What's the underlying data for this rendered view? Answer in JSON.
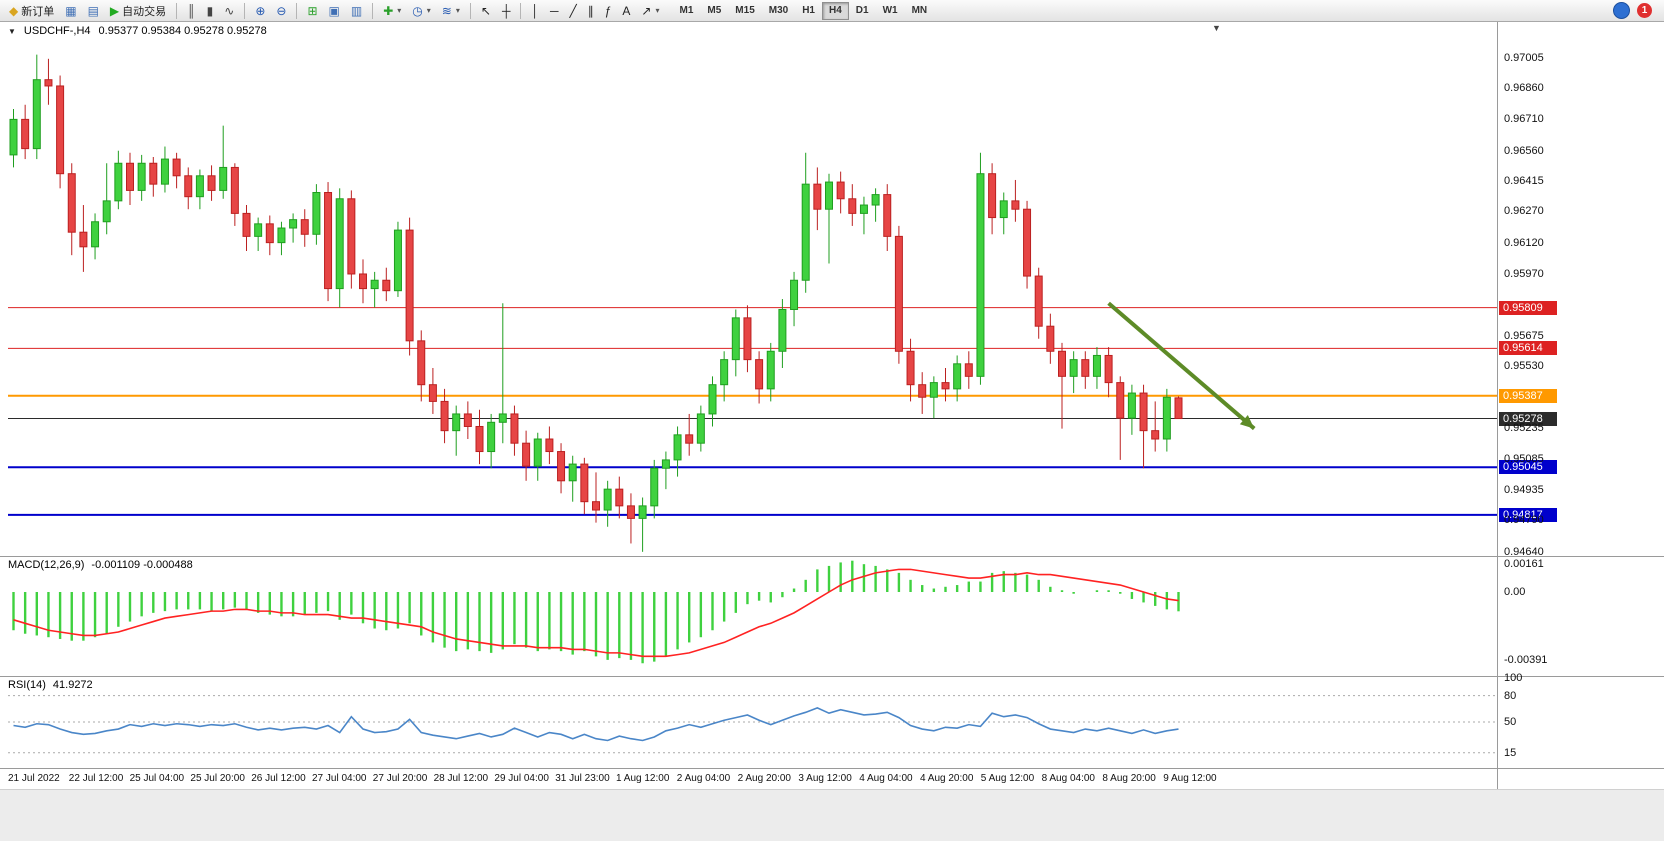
{
  "toolbar": {
    "items": [
      {
        "name": "new-order",
        "label": "新订单",
        "icon": "new-order-icon",
        "glyph": "◆",
        "color": "#d9a520"
      },
      {
        "name": "chart-windows",
        "icon": "chart-windows-icon",
        "glyph": "▦",
        "color": "#3f6fb5"
      },
      {
        "name": "profiles",
        "icon": "profiles-icon",
        "glyph": "▤",
        "color": "#3f6fb5"
      },
      {
        "name": "auto-trading",
        "label": "自动交易",
        "icon": "autotrade-play-icon",
        "glyph": "▶",
        "color": "#22aa22"
      },
      {
        "type": "sep"
      },
      {
        "name": "bar-chart-mode",
        "icon": "bar-chart-icon",
        "glyph": "║",
        "color": "#444444"
      },
      {
        "name": "candlestick-mode",
        "icon": "candlestick-chart-icon",
        "glyph": "▮",
        "color": "#444444"
      },
      {
        "name": "line-chart-mode",
        "icon": "line-chart-icon",
        "glyph": "∿",
        "color": "#444444"
      },
      {
        "type": "sep"
      },
      {
        "name": "zoom-in",
        "icon": "zoom-in-icon",
        "glyph": "⊕",
        "color": "#2458b0"
      },
      {
        "name": "zoom-out",
        "icon": "zoom-out-icon",
        "glyph": "⊖",
        "color": "#2458b0"
      },
      {
        "type": "sep"
      },
      {
        "name": "tile-windows",
        "icon": "tile-windows-icon",
        "glyph": "⊞",
        "color": "#2aa02a"
      },
      {
        "name": "cascade-windows",
        "icon": "cascade-windows-icon",
        "glyph": "▣",
        "color": "#3f6fb5"
      },
      {
        "name": "arrange-windows",
        "icon": "arrange-windows-icon",
        "glyph": "▥",
        "color": "#3f6fb5"
      },
      {
        "type": "sep"
      },
      {
        "name": "new-chart",
        "icon": "new-chart-icon",
        "glyph": "✚",
        "color": "#2aa02a",
        "dropdown": true
      },
      {
        "name": "periods",
        "icon": "clock-icon",
        "glyph": "◷",
        "color": "#2458b0",
        "dropdown": true
      },
      {
        "name": "indicators",
        "icon": "indicators-icon",
        "glyph": "≋",
        "color": "#2458b0",
        "dropdown": true
      },
      {
        "type": "sep"
      },
      {
        "name": "cursor",
        "icon": "cursor-icon",
        "glyph": "↖",
        "color": "#222222"
      },
      {
        "name": "crosshair",
        "icon": "crosshair-icon",
        "glyph": "┼",
        "color": "#222222"
      },
      {
        "type": "sep"
      },
      {
        "name": "vertical-line",
        "icon": "vertical-line-icon",
        "glyph": "│",
        "color": "#222222"
      },
      {
        "name": "horizontal-line",
        "icon": "horizontal-line-icon",
        "glyph": "─",
        "color": "#222222"
      },
      {
        "name": "trendline",
        "icon": "trendline-icon",
        "glyph": "╱",
        "color": "#222222"
      },
      {
        "name": "channel",
        "icon": "channel-icon",
        "glyph": "∥",
        "color": "#222222"
      },
      {
        "name": "fibonacci",
        "icon": "fibonacci-icon",
        "glyph": "ƒ",
        "color": "#222222"
      },
      {
        "name": "text-label",
        "icon": "text-icon",
        "glyph": "A",
        "color": "#222222"
      },
      {
        "name": "arrows-tool",
        "icon": "arrows-icon",
        "glyph": "↗",
        "color": "#222222",
        "dropdown": true
      }
    ],
    "timeframes": [
      "M1",
      "M5",
      "M15",
      "M30",
      "H1",
      "H4",
      "D1",
      "W1",
      "MN"
    ],
    "active_timeframe": "H4",
    "notification_count": "1"
  },
  "chart_data": {
    "type": "candlestick",
    "symbol": "USDCHF-",
    "timeframe": "H4",
    "symbol_period_text": "USDCHF-,H4",
    "ohlc_text": "0.95377 0.95384 0.95278 0.95278",
    "price_axis": {
      "max_price": 0.9709,
      "min_price": 0.9462,
      "labels": [
        "0.97005",
        "0.96860",
        "0.96710",
        "0.96560",
        "0.96415",
        "0.96270",
        "0.96120",
        "0.95970",
        "0.95675",
        "0.95530",
        "0.95235",
        "0.95085",
        "0.94935",
        "0.94790",
        "0.94640"
      ]
    },
    "time_axis": [
      "21 Jul 2022",
      "22 Jul 12:00",
      "25 Jul 04:00",
      "25 Jul 20:00",
      "26 Jul 12:00",
      "27 Jul 04:00",
      "27 Jul 20:00",
      "28 Jul 12:00",
      "29 Jul 04:00",
      "31 Jul 23:00",
      "1 Aug 12:00",
      "2 Aug 04:00",
      "2 Aug 20:00",
      "3 Aug 12:00",
      "4 Aug 04:00",
      "4 Aug 20:00",
      "5 Aug 12:00",
      "8 Aug 04:00",
      "8 Aug 20:00",
      "9 Aug 12:00"
    ],
    "candles": [
      [
        0.9654,
        0.9676,
        0.9648,
        0.9671
      ],
      [
        0.9671,
        0.9678,
        0.9652,
        0.9657
      ],
      [
        0.9657,
        0.9702,
        0.9652,
        0.969
      ],
      [
        0.969,
        0.97,
        0.9678,
        0.9687
      ],
      [
        0.9687,
        0.9692,
        0.9638,
        0.9645
      ],
      [
        0.9645,
        0.965,
        0.9606,
        0.9617
      ],
      [
        0.9617,
        0.963,
        0.9598,
        0.961
      ],
      [
        0.961,
        0.9626,
        0.9604,
        0.9622
      ],
      [
        0.9622,
        0.965,
        0.9616,
        0.9632
      ],
      [
        0.9632,
        0.9656,
        0.9628,
        0.965
      ],
      [
        0.965,
        0.9655,
        0.963,
        0.9637
      ],
      [
        0.9637,
        0.9654,
        0.9632,
        0.965
      ],
      [
        0.965,
        0.9653,
        0.9634,
        0.964
      ],
      [
        0.964,
        0.9658,
        0.9636,
        0.9652
      ],
      [
        0.9652,
        0.9655,
        0.9638,
        0.9644
      ],
      [
        0.9644,
        0.9648,
        0.9628,
        0.9634
      ],
      [
        0.9634,
        0.9647,
        0.9628,
        0.9644
      ],
      [
        0.9644,
        0.9649,
        0.9632,
        0.9637
      ],
      [
        0.9637,
        0.9668,
        0.9633,
        0.9648
      ],
      [
        0.9648,
        0.965,
        0.962,
        0.9626
      ],
      [
        0.9626,
        0.963,
        0.9608,
        0.9615
      ],
      [
        0.9615,
        0.9624,
        0.9608,
        0.9621
      ],
      [
        0.9621,
        0.9625,
        0.9606,
        0.9612
      ],
      [
        0.9612,
        0.9622,
        0.9606,
        0.9619
      ],
      [
        0.9619,
        0.9626,
        0.9612,
        0.9623
      ],
      [
        0.9623,
        0.9628,
        0.961,
        0.9616
      ],
      [
        0.9616,
        0.964,
        0.9611,
        0.9636
      ],
      [
        0.9636,
        0.9641,
        0.9584,
        0.959
      ],
      [
        0.959,
        0.9638,
        0.9581,
        0.9633
      ],
      [
        0.9633,
        0.9637,
        0.959,
        0.9597
      ],
      [
        0.9597,
        0.9604,
        0.9583,
        0.959
      ],
      [
        0.959,
        0.9598,
        0.9581,
        0.9594
      ],
      [
        0.9594,
        0.96,
        0.9584,
        0.9589
      ],
      [
        0.9589,
        0.9622,
        0.9586,
        0.9618
      ],
      [
        0.9618,
        0.9624,
        0.9558,
        0.9565
      ],
      [
        0.9565,
        0.957,
        0.9536,
        0.9544
      ],
      [
        0.9544,
        0.9552,
        0.953,
        0.9536
      ],
      [
        0.9536,
        0.9542,
        0.9516,
        0.9522
      ],
      [
        0.9522,
        0.9534,
        0.951,
        0.953
      ],
      [
        0.953,
        0.9536,
        0.9518,
        0.9524
      ],
      [
        0.9524,
        0.9532,
        0.9506,
        0.9512
      ],
      [
        0.9512,
        0.953,
        0.9504,
        0.9526
      ],
      [
        0.9526,
        0.9583,
        0.9516,
        0.953
      ],
      [
        0.953,
        0.9534,
        0.951,
        0.9516
      ],
      [
        0.9516,
        0.9522,
        0.9498,
        0.9505
      ],
      [
        0.9505,
        0.9521,
        0.9498,
        0.9518
      ],
      [
        0.9518,
        0.9524,
        0.9506,
        0.9512
      ],
      [
        0.9512,
        0.9516,
        0.9492,
        0.9498
      ],
      [
        0.9498,
        0.951,
        0.9488,
        0.9506
      ],
      [
        0.9506,
        0.9509,
        0.9482,
        0.9488
      ],
      [
        0.9488,
        0.9502,
        0.9478,
        0.9484
      ],
      [
        0.9484,
        0.9498,
        0.9476,
        0.9494
      ],
      [
        0.9494,
        0.95,
        0.948,
        0.9486
      ],
      [
        0.9486,
        0.9492,
        0.9468,
        0.948
      ],
      [
        0.948,
        0.949,
        0.9464,
        0.9486
      ],
      [
        0.9486,
        0.9508,
        0.948,
        0.9504
      ],
      [
        0.9504,
        0.9512,
        0.9494,
        0.9508
      ],
      [
        0.9508,
        0.9524,
        0.95,
        0.952
      ],
      [
        0.952,
        0.953,
        0.951,
        0.9516
      ],
      [
        0.9516,
        0.9534,
        0.9512,
        0.953
      ],
      [
        0.953,
        0.9548,
        0.9524,
        0.9544
      ],
      [
        0.9544,
        0.956,
        0.9536,
        0.9556
      ],
      [
        0.9556,
        0.958,
        0.9548,
        0.9576
      ],
      [
        0.9576,
        0.9582,
        0.955,
        0.9556
      ],
      [
        0.9556,
        0.956,
        0.9535,
        0.9542
      ],
      [
        0.9542,
        0.9564,
        0.9536,
        0.956
      ],
      [
        0.956,
        0.9585,
        0.9552,
        0.958
      ],
      [
        0.958,
        0.9598,
        0.9572,
        0.9594
      ],
      [
        0.9594,
        0.9655,
        0.9588,
        0.964
      ],
      [
        0.964,
        0.9648,
        0.9618,
        0.9628
      ],
      [
        0.9628,
        0.9645,
        0.9602,
        0.9641
      ],
      [
        0.9641,
        0.9646,
        0.9626,
        0.9633
      ],
      [
        0.9633,
        0.964,
        0.962,
        0.9626
      ],
      [
        0.9626,
        0.9634,
        0.9616,
        0.963
      ],
      [
        0.963,
        0.9638,
        0.9622,
        0.9635
      ],
      [
        0.9635,
        0.964,
        0.9608,
        0.9615
      ],
      [
        0.9615,
        0.962,
        0.9554,
        0.956
      ],
      [
        0.956,
        0.9566,
        0.9536,
        0.9544
      ],
      [
        0.9544,
        0.955,
        0.953,
        0.9538
      ],
      [
        0.9538,
        0.9548,
        0.9528,
        0.9545
      ],
      [
        0.9545,
        0.9552,
        0.9536,
        0.9542
      ],
      [
        0.9542,
        0.9558,
        0.9536,
        0.9554
      ],
      [
        0.9554,
        0.956,
        0.9542,
        0.9548
      ],
      [
        0.9548,
        0.9655,
        0.9544,
        0.9645
      ],
      [
        0.9645,
        0.965,
        0.9616,
        0.9624
      ],
      [
        0.9624,
        0.9636,
        0.9616,
        0.9632
      ],
      [
        0.9632,
        0.9642,
        0.9622,
        0.9628
      ],
      [
        0.9628,
        0.9632,
        0.959,
        0.9596
      ],
      [
        0.9596,
        0.96,
        0.9566,
        0.9572
      ],
      [
        0.9572,
        0.9578,
        0.9554,
        0.956
      ],
      [
        0.956,
        0.9564,
        0.9523,
        0.9548
      ],
      [
        0.9548,
        0.956,
        0.954,
        0.9556
      ],
      [
        0.9556,
        0.956,
        0.9542,
        0.9548
      ],
      [
        0.9548,
        0.9562,
        0.9542,
        0.9558
      ],
      [
        0.9558,
        0.9562,
        0.9538,
        0.9545
      ],
      [
        0.9545,
        0.9548,
        0.9508,
        0.9528
      ],
      [
        0.9528,
        0.9544,
        0.952,
        0.954
      ],
      [
        0.954,
        0.9544,
        0.9504,
        0.9522
      ],
      [
        0.9522,
        0.9536,
        0.9512,
        0.9518
      ],
      [
        0.9518,
        0.9542,
        0.9512,
        0.9538
      ],
      [
        0.95377,
        0.95384,
        0.95278,
        0.95278
      ]
    ],
    "hlines": [
      {
        "price": 0.95809,
        "label": "0.95809",
        "color": "#dd2222",
        "width": 1
      },
      {
        "price": 0.95614,
        "label": "0.95614",
        "color": "#dd2222",
        "width": 1
      },
      {
        "price": 0.95387,
        "label": "0.95387",
        "color": "#ff9900",
        "width": 2
      },
      {
        "price": 0.95278,
        "label": "0.95278",
        "color": "#2b2b2b",
        "width": 1
      },
      {
        "price": 0.95045,
        "label": "0.95045",
        "color": "#0000cc",
        "width": 2
      },
      {
        "price": 0.94817,
        "label": "0.94817",
        "color": "#0000cc",
        "width": 2
      }
    ],
    "trend_arrow": {
      "from_bar": 94,
      "from_price": 0.9583,
      "to_bar": 106.5,
      "to_price": 0.9523,
      "color": "#5d8b27"
    },
    "indicators": {
      "macd": {
        "label": "MACD(12,26,9)",
        "values_text": "-0.001109 -0.000488",
        "axis_labels": [
          "0.00161",
          "0.00",
          "-0.00391"
        ],
        "axis_values": [
          0.00161,
          0,
          -0.00391
        ],
        "hist_color": "#3fd13f",
        "signal_color": "#ff2222",
        "histogram": [
          -0.0022,
          -0.0024,
          -0.0025,
          -0.0026,
          -0.0027,
          -0.0028,
          -0.0028,
          -0.0026,
          -0.0024,
          -0.002,
          -0.0017,
          -0.0014,
          -0.0012,
          -0.0011,
          -0.001,
          -0.001,
          -0.001,
          -0.0011,
          -0.001,
          -0.0009,
          -0.001,
          -0.0012,
          -0.0013,
          -0.0014,
          -0.0014,
          -0.0013,
          -0.0012,
          -0.0011,
          -0.0016,
          -0.0013,
          -0.0018,
          -0.0021,
          -0.0022,
          -0.0021,
          -0.0018,
          -0.0025,
          -0.0029,
          -0.0032,
          -0.0034,
          -0.0033,
          -0.0034,
          -0.0035,
          -0.0033,
          -0.003,
          -0.0032,
          -0.0034,
          -0.0033,
          -0.0034,
          -0.0036,
          -0.0034,
          -0.0037,
          -0.0039,
          -0.0038,
          -0.0039,
          -0.0041,
          -0.004,
          -0.0037,
          -0.0033,
          -0.0029,
          -0.0026,
          -0.0022,
          -0.0017,
          -0.0012,
          -0.0007,
          -0.0005,
          -0.0006,
          -0.0003,
          0.0002,
          0.0007,
          0.0013,
          0.0015,
          0.0017,
          0.0018,
          0.0016,
          0.0015,
          0.0013,
          0.0011,
          0.0007,
          0.0004,
          0.0002,
          0.0003,
          0.0004,
          0.0006,
          0.0006,
          0.0011,
          0.0012,
          0.0011,
          0.001,
          0.0007,
          0.0003,
          0.0001,
          -0.0001,
          0.0,
          0.0001,
          0.0001,
          -0.0001,
          -0.0004,
          -0.0006,
          -0.0008,
          -0.001,
          -0.00111
        ],
        "signal": [
          -0.0016,
          -0.0018,
          -0.002,
          -0.0022,
          -0.0023,
          -0.0024,
          -0.0025,
          -0.0025,
          -0.0024,
          -0.0023,
          -0.0021,
          -0.0019,
          -0.0017,
          -0.0015,
          -0.0014,
          -0.0013,
          -0.0012,
          -0.0011,
          -0.0011,
          -0.001,
          -0.001,
          -0.0011,
          -0.0011,
          -0.0012,
          -0.0012,
          -0.0013,
          -0.0013,
          -0.0013,
          -0.0014,
          -0.0015,
          -0.0015,
          -0.0016,
          -0.0017,
          -0.0018,
          -0.0019,
          -0.002,
          -0.0023,
          -0.0025,
          -0.0027,
          -0.0028,
          -0.0029,
          -0.003,
          -0.0031,
          -0.0031,
          -0.0031,
          -0.0032,
          -0.0032,
          -0.0032,
          -0.0033,
          -0.0033,
          -0.0034,
          -0.0035,
          -0.0035,
          -0.0036,
          -0.0037,
          -0.0037,
          -0.0037,
          -0.0036,
          -0.0035,
          -0.0033,
          -0.0031,
          -0.0029,
          -0.0026,
          -0.0023,
          -0.002,
          -0.0018,
          -0.0015,
          -0.0012,
          -0.0008,
          -0.0004,
          0.0,
          0.0004,
          0.0007,
          0.0009,
          0.0011,
          0.0012,
          0.0013,
          0.0013,
          0.0012,
          0.0011,
          0.001,
          0.0009,
          0.0008,
          0.0008,
          0.0009,
          0.001,
          0.001,
          0.0011,
          0.001,
          0.001,
          0.0009,
          0.0008,
          0.0007,
          0.0006,
          0.0005,
          0.0004,
          0.0002,
          0.0,
          -0.0002,
          -0.0004,
          -0.00049
        ]
      },
      "rsi": {
        "label": "RSI(14)",
        "value_text": "41.9272",
        "color": "#4a86c8",
        "levels": [
          80,
          50,
          15
        ],
        "axis_labels": [
          "100",
          "80",
          "50",
          "15"
        ],
        "axis_values": [
          100,
          80,
          50,
          15
        ],
        "values": [
          46,
          44,
          48,
          47,
          42,
          38,
          36,
          37,
          40,
          42,
          47,
          45,
          48,
          46,
          48,
          47,
          45,
          47,
          46,
          48,
          44,
          41,
          43,
          41,
          43,
          44,
          42,
          46,
          38,
          56,
          42,
          38,
          39,
          42,
          53,
          38,
          35,
          33,
          31,
          34,
          37,
          33,
          36,
          43,
          38,
          33,
          38,
          36,
          31,
          36,
          31,
          29,
          34,
          31,
          29,
          33,
          40,
          43,
          47,
          44,
          48,
          52,
          55,
          58,
          52,
          47,
          52,
          57,
          61,
          66,
          60,
          64,
          61,
          58,
          59,
          61,
          55,
          46,
          42,
          40,
          44,
          43,
          47,
          45,
          60,
          56,
          58,
          55,
          48,
          42,
          40,
          38,
          42,
          40,
          43,
          40,
          37,
          41,
          37,
          40,
          41.93
        ]
      }
    },
    "colors": {
      "up_fill": "#3fd13f",
      "up_stroke": "#1f9e1f",
      "down_fill": "#e64545",
      "down_stroke": "#bb2020",
      "background": "#ffffff"
    }
  }
}
